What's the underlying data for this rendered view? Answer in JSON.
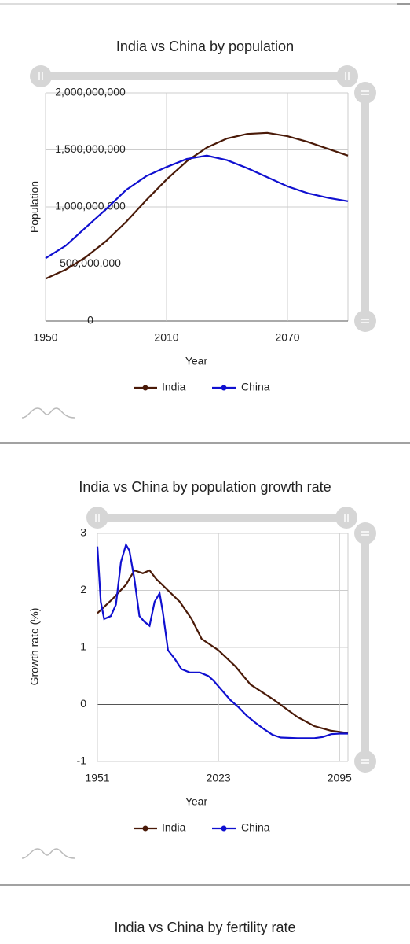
{
  "chart_data": [
    {
      "type": "line",
      "title": "India vs China by population",
      "x_label": "Year",
      "y_label": "Population",
      "x": [
        1950,
        1960,
        1970,
        1980,
        1990,
        2000,
        2010,
        2020,
        2030,
        2040,
        2050,
        2060,
        2070,
        2080,
        2090,
        2100
      ],
      "series": [
        {
          "name": "India",
          "color": "#4a1a08",
          "values": [
            370000000,
            450000000,
            560000000,
            700000000,
            870000000,
            1060000000,
            1240000000,
            1400000000,
            1520000000,
            1600000000,
            1640000000,
            1650000000,
            1620000000,
            1570000000,
            1510000000,
            1450000000
          ]
        },
        {
          "name": "China",
          "color": "#1010d0",
          "values": [
            550000000,
            660000000,
            820000000,
            980000000,
            1150000000,
            1270000000,
            1350000000,
            1420000000,
            1450000000,
            1410000000,
            1340000000,
            1260000000,
            1180000000,
            1120000000,
            1080000000,
            1050000000
          ]
        }
      ],
      "xlim": [
        1950,
        2100
      ],
      "xticks": [
        1950,
        2010,
        2070
      ],
      "ylim": [
        0,
        2000000000
      ],
      "yticks": [
        {
          "value": 0,
          "label": "0"
        },
        {
          "value": 500000000,
          "label": "500,000,000"
        },
        {
          "value": 1000000000,
          "label": "1,000,000,000"
        },
        {
          "value": 1500000000,
          "label": "1,500,000,000"
        },
        {
          "value": 2000000000,
          "label": "2,000,000,000"
        }
      ],
      "grid": true
    },
    {
      "type": "line",
      "title": "India vs China by population growth rate",
      "x_label": "Year",
      "y_label": "Growth rate (%)",
      "series": [
        {
          "name": "India",
          "color": "#4a1a08",
          "x": [
            1951,
            1960,
            1968,
            1973,
            1978,
            1982,
            1986,
            1993,
            2000,
            2007,
            2013,
            2023,
            2033,
            2042,
            2056,
            2070,
            2080,
            2090,
            2100
          ],
          "values": [
            1.6,
            1.85,
            2.1,
            2.35,
            2.3,
            2.35,
            2.2,
            2.0,
            1.8,
            1.5,
            1.15,
            0.95,
            0.67,
            0.35,
            0.08,
            -0.22,
            -0.38,
            -0.46,
            -0.5
          ]
        },
        {
          "name": "China",
          "color": "#1010d0",
          "x": [
            1951,
            1953,
            1955,
            1959,
            1962,
            1965,
            1968,
            1970,
            1973,
            1976,
            1979,
            1982,
            1985,
            1988,
            1990,
            1993,
            1997,
            2001,
            2006,
            2012,
            2017,
            2020,
            2025,
            2030,
            2035,
            2040,
            2045,
            2050,
            2055,
            2060,
            2070,
            2080,
            2085,
            2090,
            2095,
            2100
          ],
          "values": [
            2.77,
            1.8,
            1.5,
            1.55,
            1.75,
            2.5,
            2.8,
            2.7,
            2.2,
            1.55,
            1.45,
            1.38,
            1.8,
            1.95,
            1.6,
            0.95,
            0.8,
            0.62,
            0.56,
            0.56,
            0.5,
            0.42,
            0.25,
            0.08,
            -0.05,
            -0.2,
            -0.32,
            -0.43,
            -0.53,
            -0.58,
            -0.59,
            -0.59,
            -0.57,
            -0.52,
            -0.51,
            -0.51
          ]
        }
      ],
      "xlim": [
        1951,
        2100
      ],
      "xticks": [
        1951,
        2023,
        2095
      ],
      "ylim": [
        -1,
        3
      ],
      "yticks": [
        -1,
        0,
        1,
        2,
        3
      ],
      "grid": true
    },
    {
      "type": "line",
      "title": "India vs China by fertility rate"
    }
  ]
}
